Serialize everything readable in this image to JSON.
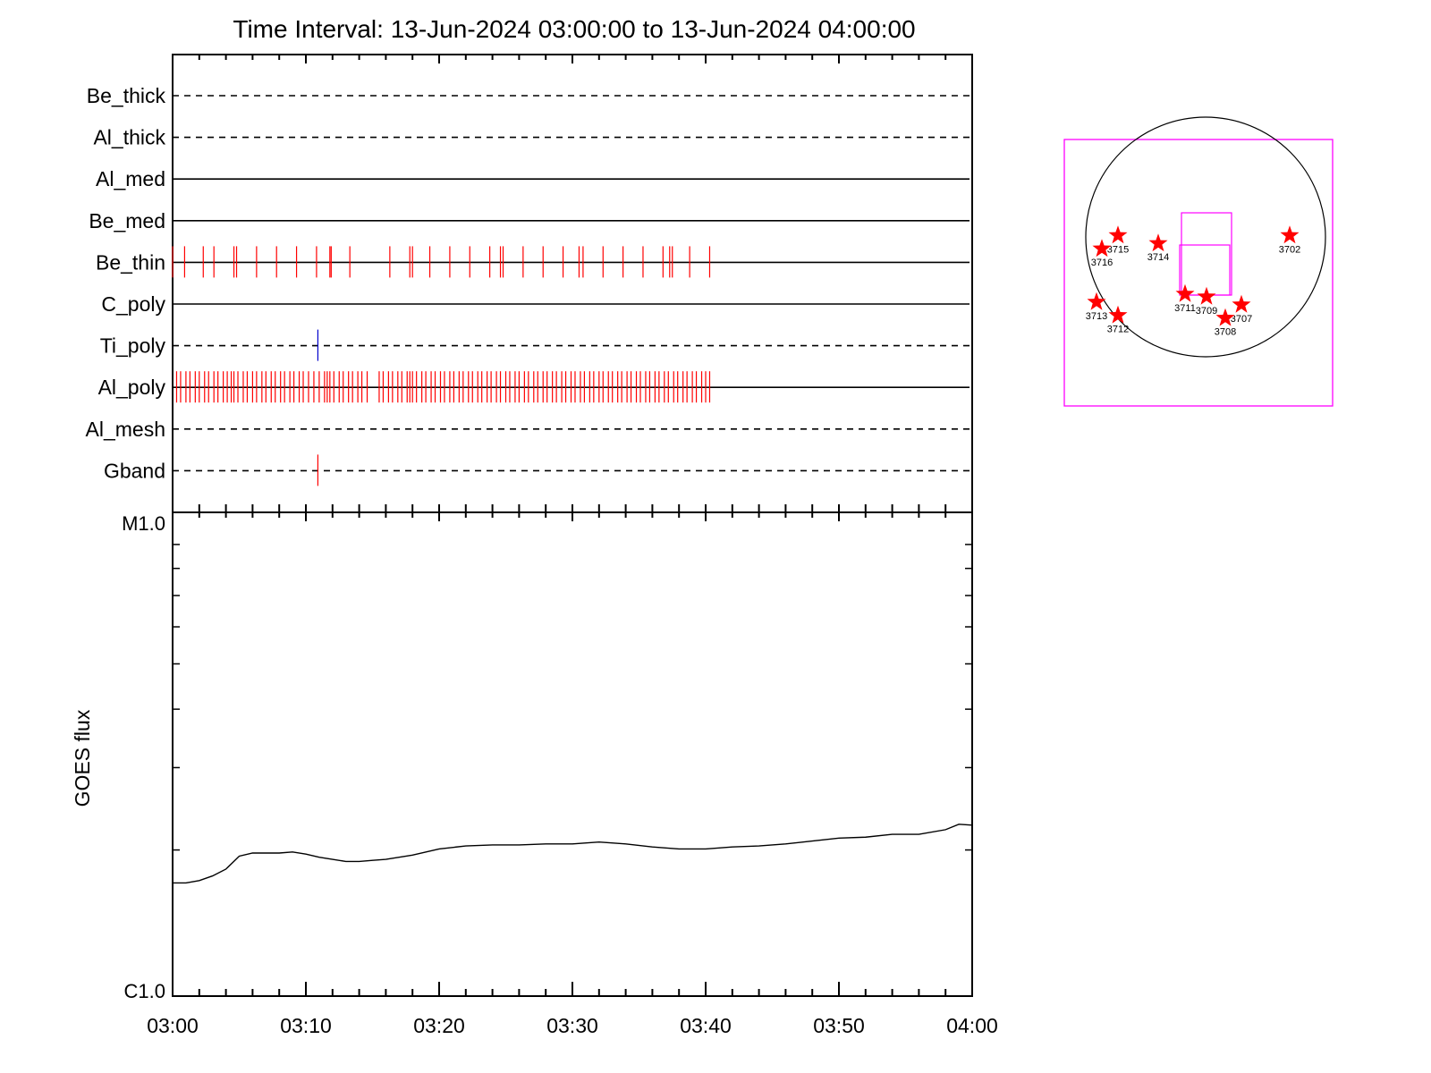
{
  "title": "Time Interval: 13-Jun-2024 03:00:00 to 13-Jun-2024 04:00:00",
  "chart_data": [
    {
      "type": "timeline",
      "x_range": [
        "03:00",
        "04:00"
      ],
      "channels": [
        {
          "name": "Be_thick",
          "line": "dashed",
          "events": [],
          "color": "#ff0000"
        },
        {
          "name": "Al_thick",
          "line": "dashed",
          "events": [],
          "color": "#ff0000"
        },
        {
          "name": "Al_med",
          "line": "solid",
          "events": [],
          "color": "#ff0000"
        },
        {
          "name": "Be_med",
          "line": "solid",
          "events": [],
          "color": "#ff0000"
        },
        {
          "name": "Be_thin",
          "line": "solid",
          "color": "#ff0000",
          "events": [
            0.0,
            0.9,
            2.3,
            3.1,
            4.6,
            4.8,
            6.3,
            7.8,
            9.3,
            10.8,
            11.8,
            11.9,
            13.3,
            16.3,
            17.8,
            18.0,
            19.3,
            20.8,
            22.3,
            23.8,
            24.6,
            24.8,
            26.3,
            27.8,
            29.3,
            30.5,
            30.8,
            32.3,
            33.8,
            35.3,
            36.8,
            37.3,
            37.5,
            38.8,
            40.3
          ]
        },
        {
          "name": "C_poly",
          "line": "solid",
          "events": [],
          "color": "#ff0000"
        },
        {
          "name": "Ti_poly",
          "line": "dashed",
          "color": "#0000cc",
          "events": [
            10.9
          ]
        },
        {
          "name": "Al_poly",
          "line": "solid",
          "color": "#ff0000",
          "events": [
            0.3,
            0.6,
            1.0,
            1.3,
            1.7,
            2.0,
            2.4,
            2.7,
            3.1,
            3.4,
            3.8,
            4.1,
            4.4,
            4.6,
            4.9,
            5.3,
            5.6,
            6.0,
            6.3,
            6.7,
            7.0,
            7.4,
            7.7,
            8.1,
            8.4,
            8.8,
            9.1,
            9.5,
            9.8,
            10.2,
            10.6,
            11.0,
            11.4,
            11.6,
            11.8,
            12.1,
            12.5,
            12.8,
            13.2,
            13.5,
            13.9,
            14.2,
            14.6,
            15.5,
            15.8,
            16.2,
            16.5,
            16.9,
            17.2,
            17.6,
            17.8,
            18.0,
            18.3,
            18.7,
            19.0,
            19.4,
            19.7,
            20.1,
            20.4,
            20.8,
            21.1,
            21.5,
            21.8,
            22.2,
            22.5,
            22.9,
            23.2,
            23.6,
            23.9,
            24.3,
            24.6,
            25.0,
            25.3,
            25.7,
            26.0,
            26.4,
            26.7,
            27.1,
            27.4,
            27.8,
            28.1,
            28.5,
            28.8,
            29.2,
            29.5,
            29.9,
            30.2,
            30.6,
            30.9,
            31.3,
            31.6,
            32.0,
            32.3,
            32.7,
            33.0,
            33.4,
            33.7,
            34.1,
            34.4,
            34.8,
            35.1,
            35.5,
            35.8,
            36.2,
            36.5,
            36.9,
            37.2,
            37.6,
            37.9,
            38.3,
            38.6,
            39.0,
            39.3,
            39.7,
            40.0,
            40.3
          ]
        },
        {
          "name": "Al_mesh",
          "line": "dashed",
          "events": [],
          "color": "#ff0000"
        },
        {
          "name": "Gband",
          "line": "dashed",
          "color": "#ff0000",
          "events": [
            10.9
          ]
        }
      ]
    },
    {
      "type": "line",
      "ylabel": "GOES flux",
      "y_scale": "log",
      "ylim": [
        "C1.0",
        "M1.0"
      ],
      "ylim_values": [
        1e-06,
        1e-05
      ],
      "xticks": [
        "03:00",
        "03:10",
        "03:20",
        "03:30",
        "03:40",
        "03:50",
        "04:00"
      ],
      "series": [
        {
          "color": "#000000",
          "x": [
            "03:00",
            "03:01",
            "03:02",
            "03:03",
            "03:04",
            "03:05",
            "03:06",
            "03:07",
            "03:08",
            "03:09",
            "03:10",
            "03:11",
            "03:12",
            "03:13",
            "03:14",
            "03:15",
            "03:16",
            "03:18",
            "03:20",
            "03:22",
            "03:24",
            "03:26",
            "03:28",
            "03:30",
            "03:32",
            "03:34",
            "03:36",
            "03:38",
            "03:40",
            "03:42",
            "03:44",
            "03:46",
            "03:48",
            "03:50",
            "03:52",
            "03:54",
            "03:56",
            "03:58",
            "03:59",
            "04:00"
          ],
          "y": [
            1.7e-06,
            1.7e-06,
            1.72e-06,
            1.76e-06,
            1.82e-06,
            1.94e-06,
            1.97e-06,
            1.97e-06,
            1.97e-06,
            1.98e-06,
            1.96e-06,
            1.93e-06,
            1.91e-06,
            1.89e-06,
            1.89e-06,
            1.9e-06,
            1.91e-06,
            1.95e-06,
            2.01e-06,
            2.04e-06,
            2.05e-06,
            2.05e-06,
            2.06e-06,
            2.06e-06,
            2.08e-06,
            2.06e-06,
            2.03e-06,
            2.01e-06,
            2.01e-06,
            2.03e-06,
            2.04e-06,
            2.06e-06,
            2.09e-06,
            2.12e-06,
            2.13e-06,
            2.16e-06,
            2.16e-06,
            2.21e-06,
            2.27e-06,
            2.26e-06
          ]
        }
      ]
    },
    {
      "type": "scatter",
      "description_items": "solar disk map with active regions",
      "points": [
        {
          "label": "3702",
          "x": 0.84,
          "y": 0.36
        },
        {
          "label": "3707",
          "x": 0.66,
          "y": 0.62
        },
        {
          "label": "3708",
          "x": 0.6,
          "y": 0.67
        },
        {
          "label": "3709",
          "x": 0.53,
          "y": 0.59
        },
        {
          "label": "3711",
          "x": 0.45,
          "y": 0.58
        },
        {
          "label": "3712",
          "x": 0.2,
          "y": 0.66
        },
        {
          "label": "3713",
          "x": 0.12,
          "y": 0.61
        },
        {
          "label": "3714",
          "x": 0.35,
          "y": 0.39
        },
        {
          "label": "3715",
          "x": 0.2,
          "y": 0.36
        },
        {
          "label": "3716",
          "x": 0.14,
          "y": 0.41
        }
      ],
      "marker_color": "#ff0000",
      "frame_color": "#ff00ff"
    }
  ]
}
